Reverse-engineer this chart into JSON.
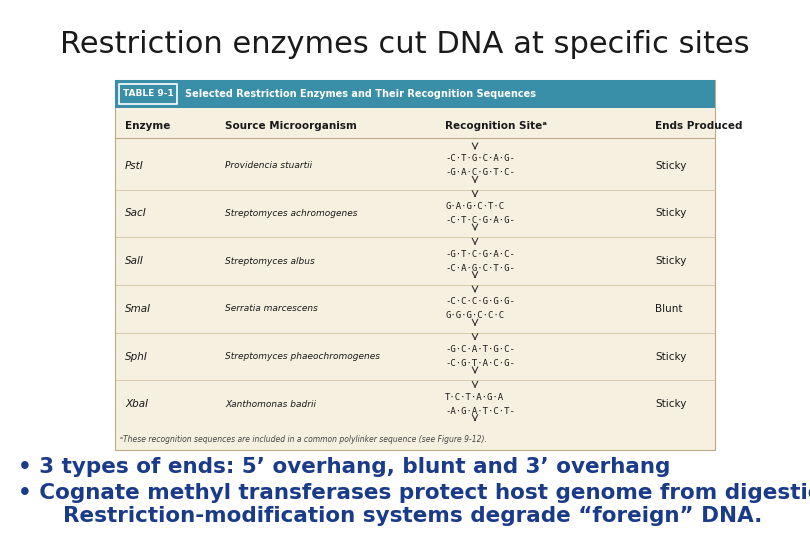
{
  "title": "Restriction enzymes cut DNA at specific sites",
  "title_color": "#1a1a1a",
  "title_fontsize": 22,
  "bg_color": "#ffffff",
  "table_bg": "#f5f0e0",
  "table_header_bg": "#3a8fa8",
  "table_header_label": "TABLE 9-1",
  "table_header_title": "Selected Restriction Enzymes and Their Recognition Sequences",
  "col_headers": [
    "Enzyme",
    "Source Microorganism",
    "Recognition Siteᵃ",
    "Ends Produced"
  ],
  "rows": [
    {
      "enzyme": "PstI",
      "source": "Providencia stuartii",
      "rec1": "-C·T·G·C·A·G-",
      "rec2": "-G·A·C·G·T·C-",
      "ends": "Sticky"
    },
    {
      "enzyme": "SacI",
      "source": "Streptomyces achromogenes",
      "rec1": "G·A·G·C·T·C",
      "rec2": "-C·T·C·G·A·G-",
      "ends": "Sticky"
    },
    {
      "enzyme": "SalI",
      "source": "Streptomyces albus",
      "rec1": "-G·T·C·G·A·C-",
      "rec2": "-C·A·G·C·T·G-",
      "ends": "Sticky"
    },
    {
      "enzyme": "SmaI",
      "source": "Serratia marcescens",
      "rec1": "-C·C·C·G·G·G-",
      "rec2": "G·G·G·C·C·C",
      "ends": "Blunt"
    },
    {
      "enzyme": "SphI",
      "source": "Streptomyces phaeochromogenes",
      "rec1": "-G·C·A·T·G·C-",
      "rec2": "-C·G·T·A·C·G-",
      "ends": "Sticky"
    },
    {
      "enzyme": "XbaI",
      "source": "Xanthomonas badrii",
      "rec1": "T·C·T·A·G·A",
      "rec2": "-A·G·A·T·C·T-",
      "ends": "Sticky"
    }
  ],
  "footnote": "ᵃThese recognition sequences are included in a common polylinker sequence (see Figure 9-12).",
  "bullet1": "• 3 types of ends: 5’ overhang, blunt and 3’ overhang",
  "bullet2": "• Cognate methyl transferases protect host genome from digestion.",
  "bullet3": "      Restriction-modification systems degrade “foreign” DNA.",
  "bullet_color": "#1a3a8a",
  "bullet_fontsize": 15.5
}
